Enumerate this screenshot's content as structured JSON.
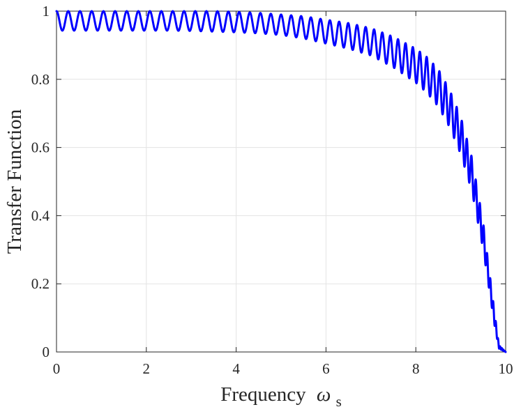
{
  "chart_data": {
    "type": "line",
    "title": "",
    "xlabel": "Frequency",
    "xlabel_symbol": "ω",
    "xlabel_subscript": "s",
    "ylabel": "Transfer Function",
    "xlim": [
      0,
      10
    ],
    "ylim": [
      0,
      1
    ],
    "xticks": [
      0,
      2,
      4,
      6,
      8,
      10
    ],
    "yticks": [
      0,
      0.2,
      0.4,
      0.6,
      0.8,
      1
    ],
    "xtick_labels": [
      "0",
      "2",
      "4",
      "6",
      "8",
      "10"
    ],
    "ytick_labels": [
      "0",
      "0.2",
      "0.4",
      "0.6",
      "0.8",
      "1"
    ],
    "grid": true,
    "legend": "none",
    "series": [
      {
        "color": "#0000ff",
        "x": [
          0,
          0.5,
          1,
          1.5,
          2,
          2.5,
          3,
          3.5,
          4,
          4.5,
          5,
          5.5,
          6,
          6.5,
          7,
          7.5,
          8,
          8.25,
          8.5,
          8.75,
          9,
          9.25,
          9.5,
          9.75,
          9.85,
          10
        ],
        "upper_envelope": [
          1,
          1,
          1,
          1,
          1,
          1,
          1,
          1,
          0.998,
          0.995,
          0.99,
          0.985,
          0.975,
          0.965,
          0.95,
          0.925,
          0.89,
          0.865,
          0.83,
          0.77,
          0.69,
          0.57,
          0.38,
          0.12,
          0.02,
          0
        ],
        "lower_envelope": [
          0.943,
          0.943,
          0.943,
          0.943,
          0.943,
          0.943,
          0.942,
          0.94,
          0.938,
          0.935,
          0.93,
          0.92,
          0.905,
          0.89,
          0.87,
          0.835,
          0.79,
          0.76,
          0.72,
          0.66,
          0.58,
          0.47,
          0.3,
          0.08,
          0.01,
          0
        ],
        "ripple_cycles": 60
      }
    ]
  }
}
